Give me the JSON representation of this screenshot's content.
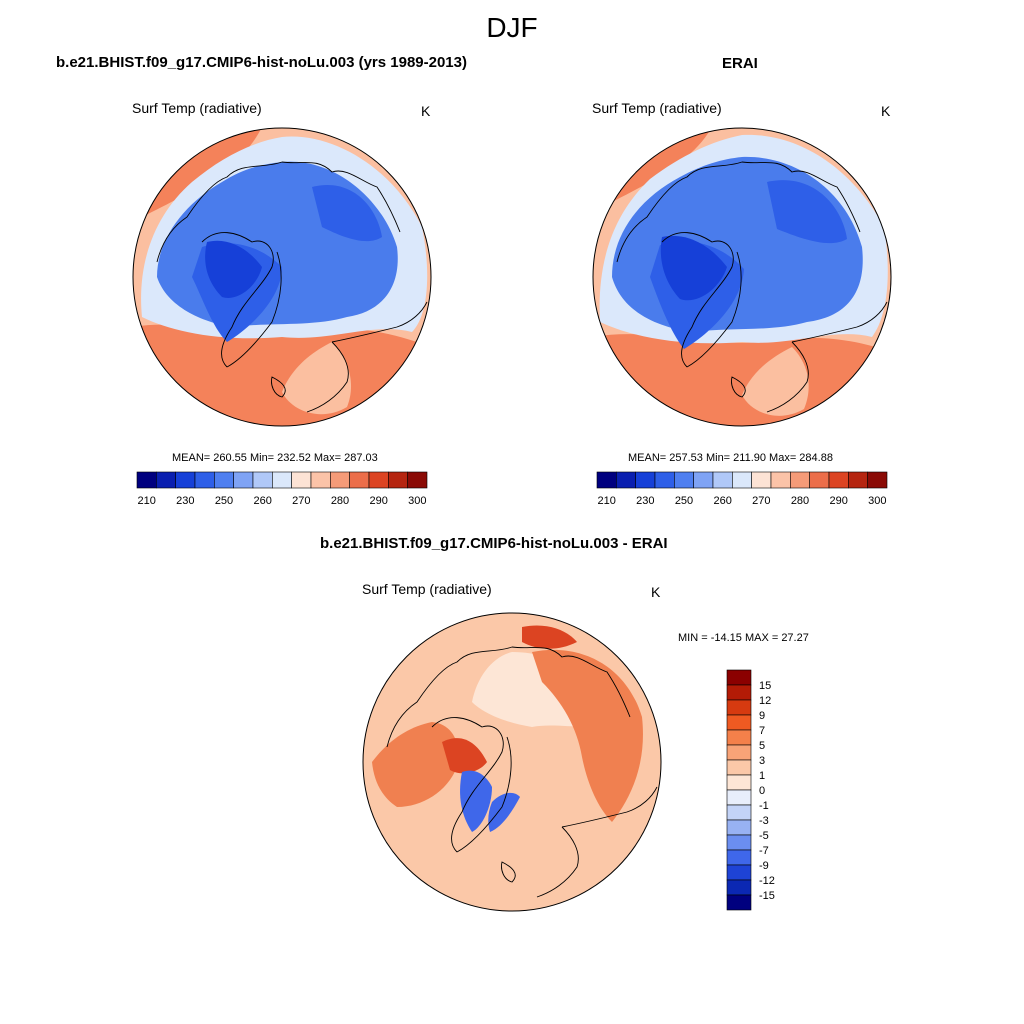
{
  "page_title": "DJF",
  "panels": [
    {
      "title": "b.e21.BHIST.f09_g17.CMIP6-hist-noLu.003 (yrs 1989-2013)",
      "variable": "Surf Temp (radiative)",
      "units": "K",
      "stats": "MEAN= 260.55  Min= 232.52  Max= 287.03"
    },
    {
      "title": "ERAI",
      "variable": "Surf Temp (radiative)",
      "units": "K",
      "stats": "MEAN= 257.53  Min= 211.90  Max= 284.88"
    },
    {
      "title": "b.e21.BHIST.f09_g17.CMIP6-hist-noLu.003 - ERAI",
      "variable": "Surf Temp (radiative)",
      "units": "K",
      "stats": "MIN = -14.15 MAX =  27.27"
    }
  ],
  "colorbar_abs": {
    "colors": [
      "#00007f",
      "#0a1fb0",
      "#1640d8",
      "#2e5fe8",
      "#4f7ff0",
      "#7fa3f5",
      "#b0c8f8",
      "#dbe8fb",
      "#fde3d5",
      "#fbc3a8",
      "#f59b78",
      "#ec6e4a",
      "#dc4422",
      "#b52510",
      "#8a0a05"
    ],
    "tick_labels": [
      "210",
      "230",
      "250",
      "260",
      "270",
      "280",
      "290",
      "300"
    ]
  },
  "colorbar_diff": {
    "colors": [
      "#8b0000",
      "#b31b06",
      "#d63a10",
      "#ef5a22",
      "#f4804a",
      "#f8a377",
      "#fbc8a8",
      "#fde6d6",
      "#e8eefb",
      "#c3d3f7",
      "#98b2f3",
      "#6b8ef0",
      "#3f67ea",
      "#1e43d6",
      "#0b28b3",
      "#00007f"
    ],
    "tick_labels": [
      "15",
      "12",
      "9",
      "7",
      "5",
      "3",
      "1",
      "0",
      "-1",
      "-3",
      "-5",
      "-7",
      "-9",
      "-12",
      "-15"
    ]
  },
  "map_colors": {
    "ocean_warm": "#f4825a",
    "ocean_mid": "#fbbfa0",
    "pale": "#dbe8fb",
    "cold": "#4a7cec",
    "colder": "#2e5fe8",
    "coldest": "#1640d8",
    "diff_base": "#fbc8a8",
    "diff_warm": "#f08050",
    "diff_hot": "#dc4422",
    "diff_cold": "#3f67ea",
    "diff_pale": "#fde6d6",
    "outline": "#000000"
  }
}
